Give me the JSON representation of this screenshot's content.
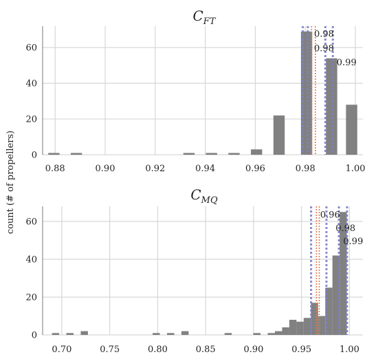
{
  "chart_data": [
    {
      "type": "bar",
      "title": {
        "main": "C",
        "sub": "FT"
      },
      "ylabel": "count (# of propellers)",
      "xlim": [
        0.875,
        1.003
      ],
      "ylim": [
        0,
        72
      ],
      "xticks": [
        "0.88",
        "0.90",
        "0.92",
        "0.94",
        "0.96",
        "0.98",
        "1.00"
      ],
      "yticks": [
        "0",
        "20",
        "40",
        "60"
      ],
      "bin_width": 0.0045,
      "bins": [
        {
          "x": 0.8795,
          "count": 1
        },
        {
          "x": 0.8885,
          "count": 1
        },
        {
          "x": 0.9335,
          "count": 1
        },
        {
          "x": 0.9425,
          "count": 1
        },
        {
          "x": 0.9515,
          "count": 1
        },
        {
          "x": 0.9605,
          "count": 3
        },
        {
          "x": 0.9695,
          "count": 22
        },
        {
          "x": 0.9805,
          "count": 69
        },
        {
          "x": 0.9905,
          "count": 54
        },
        {
          "x": 0.9985,
          "count": 28
        }
      ],
      "blue_dotted_lines": [
        0.979,
        0.981,
        0.988,
        0.991
      ],
      "orange_dotted_lines": [
        0.9825,
        0.984
      ],
      "annotations": [
        {
          "text": "0.98",
          "x": 0.9835,
          "y": 66
        },
        {
          "text": "0.98",
          "x": 0.9835,
          "y": 58
        },
        {
          "text": "0.99",
          "x": 0.9925,
          "y": 50
        }
      ],
      "bar_color": "#7a7a7a",
      "blue_color": "#7a80c8",
      "orange_color": "#e07b50"
    },
    {
      "type": "bar",
      "title": {
        "main": "C",
        "sub": "MQ"
      },
      "ylabel": "count (# of propellers)",
      "xlim": [
        0.68,
        1.014
      ],
      "ylim": [
        0,
        68
      ],
      "xticks": [
        "0.70",
        "0.75",
        "0.80",
        "0.85",
        "0.90",
        "0.95",
        "1.00"
      ],
      "yticks": [
        "0",
        "20",
        "40",
        "60"
      ],
      "bin_width": 0.0075,
      "bins": [
        {
          "x": 0.6935,
          "count": 1
        },
        {
          "x": 0.7085,
          "count": 1
        },
        {
          "x": 0.7235,
          "count": 2
        },
        {
          "x": 0.7985,
          "count": 1
        },
        {
          "x": 0.8135,
          "count": 1
        },
        {
          "x": 0.8285,
          "count": 2
        },
        {
          "x": 0.8735,
          "count": 1
        },
        {
          "x": 0.9035,
          "count": 1
        },
        {
          "x": 0.9185,
          "count": 1
        },
        {
          "x": 0.926,
          "count": 2
        },
        {
          "x": 0.9335,
          "count": 4
        },
        {
          "x": 0.941,
          "count": 8
        },
        {
          "x": 0.9485,
          "count": 7
        },
        {
          "x": 0.956,
          "count": 9
        },
        {
          "x": 0.9635,
          "count": 17
        },
        {
          "x": 0.971,
          "count": 10
        },
        {
          "x": 0.9785,
          "count": 25
        },
        {
          "x": 0.986,
          "count": 42
        },
        {
          "x": 0.9935,
          "count": 65
        }
      ],
      "blue_dotted_lines": [
        0.96,
        0.976,
        0.989,
        0.9975
      ],
      "orange_dotted_lines": [
        0.9655,
        0.9685
      ],
      "annotations": [
        {
          "text": "0.96",
          "x": 0.9695,
          "y": 62
        },
        {
          "text": "0.98",
          "x": 0.9855,
          "y": 55
        },
        {
          "text": "0.99",
          "x": 0.9935,
          "y": 48
        }
      ],
      "bar_color": "#7a7a7a",
      "blue_color": "#7a80c8",
      "orange_color": "#e07b50"
    }
  ]
}
